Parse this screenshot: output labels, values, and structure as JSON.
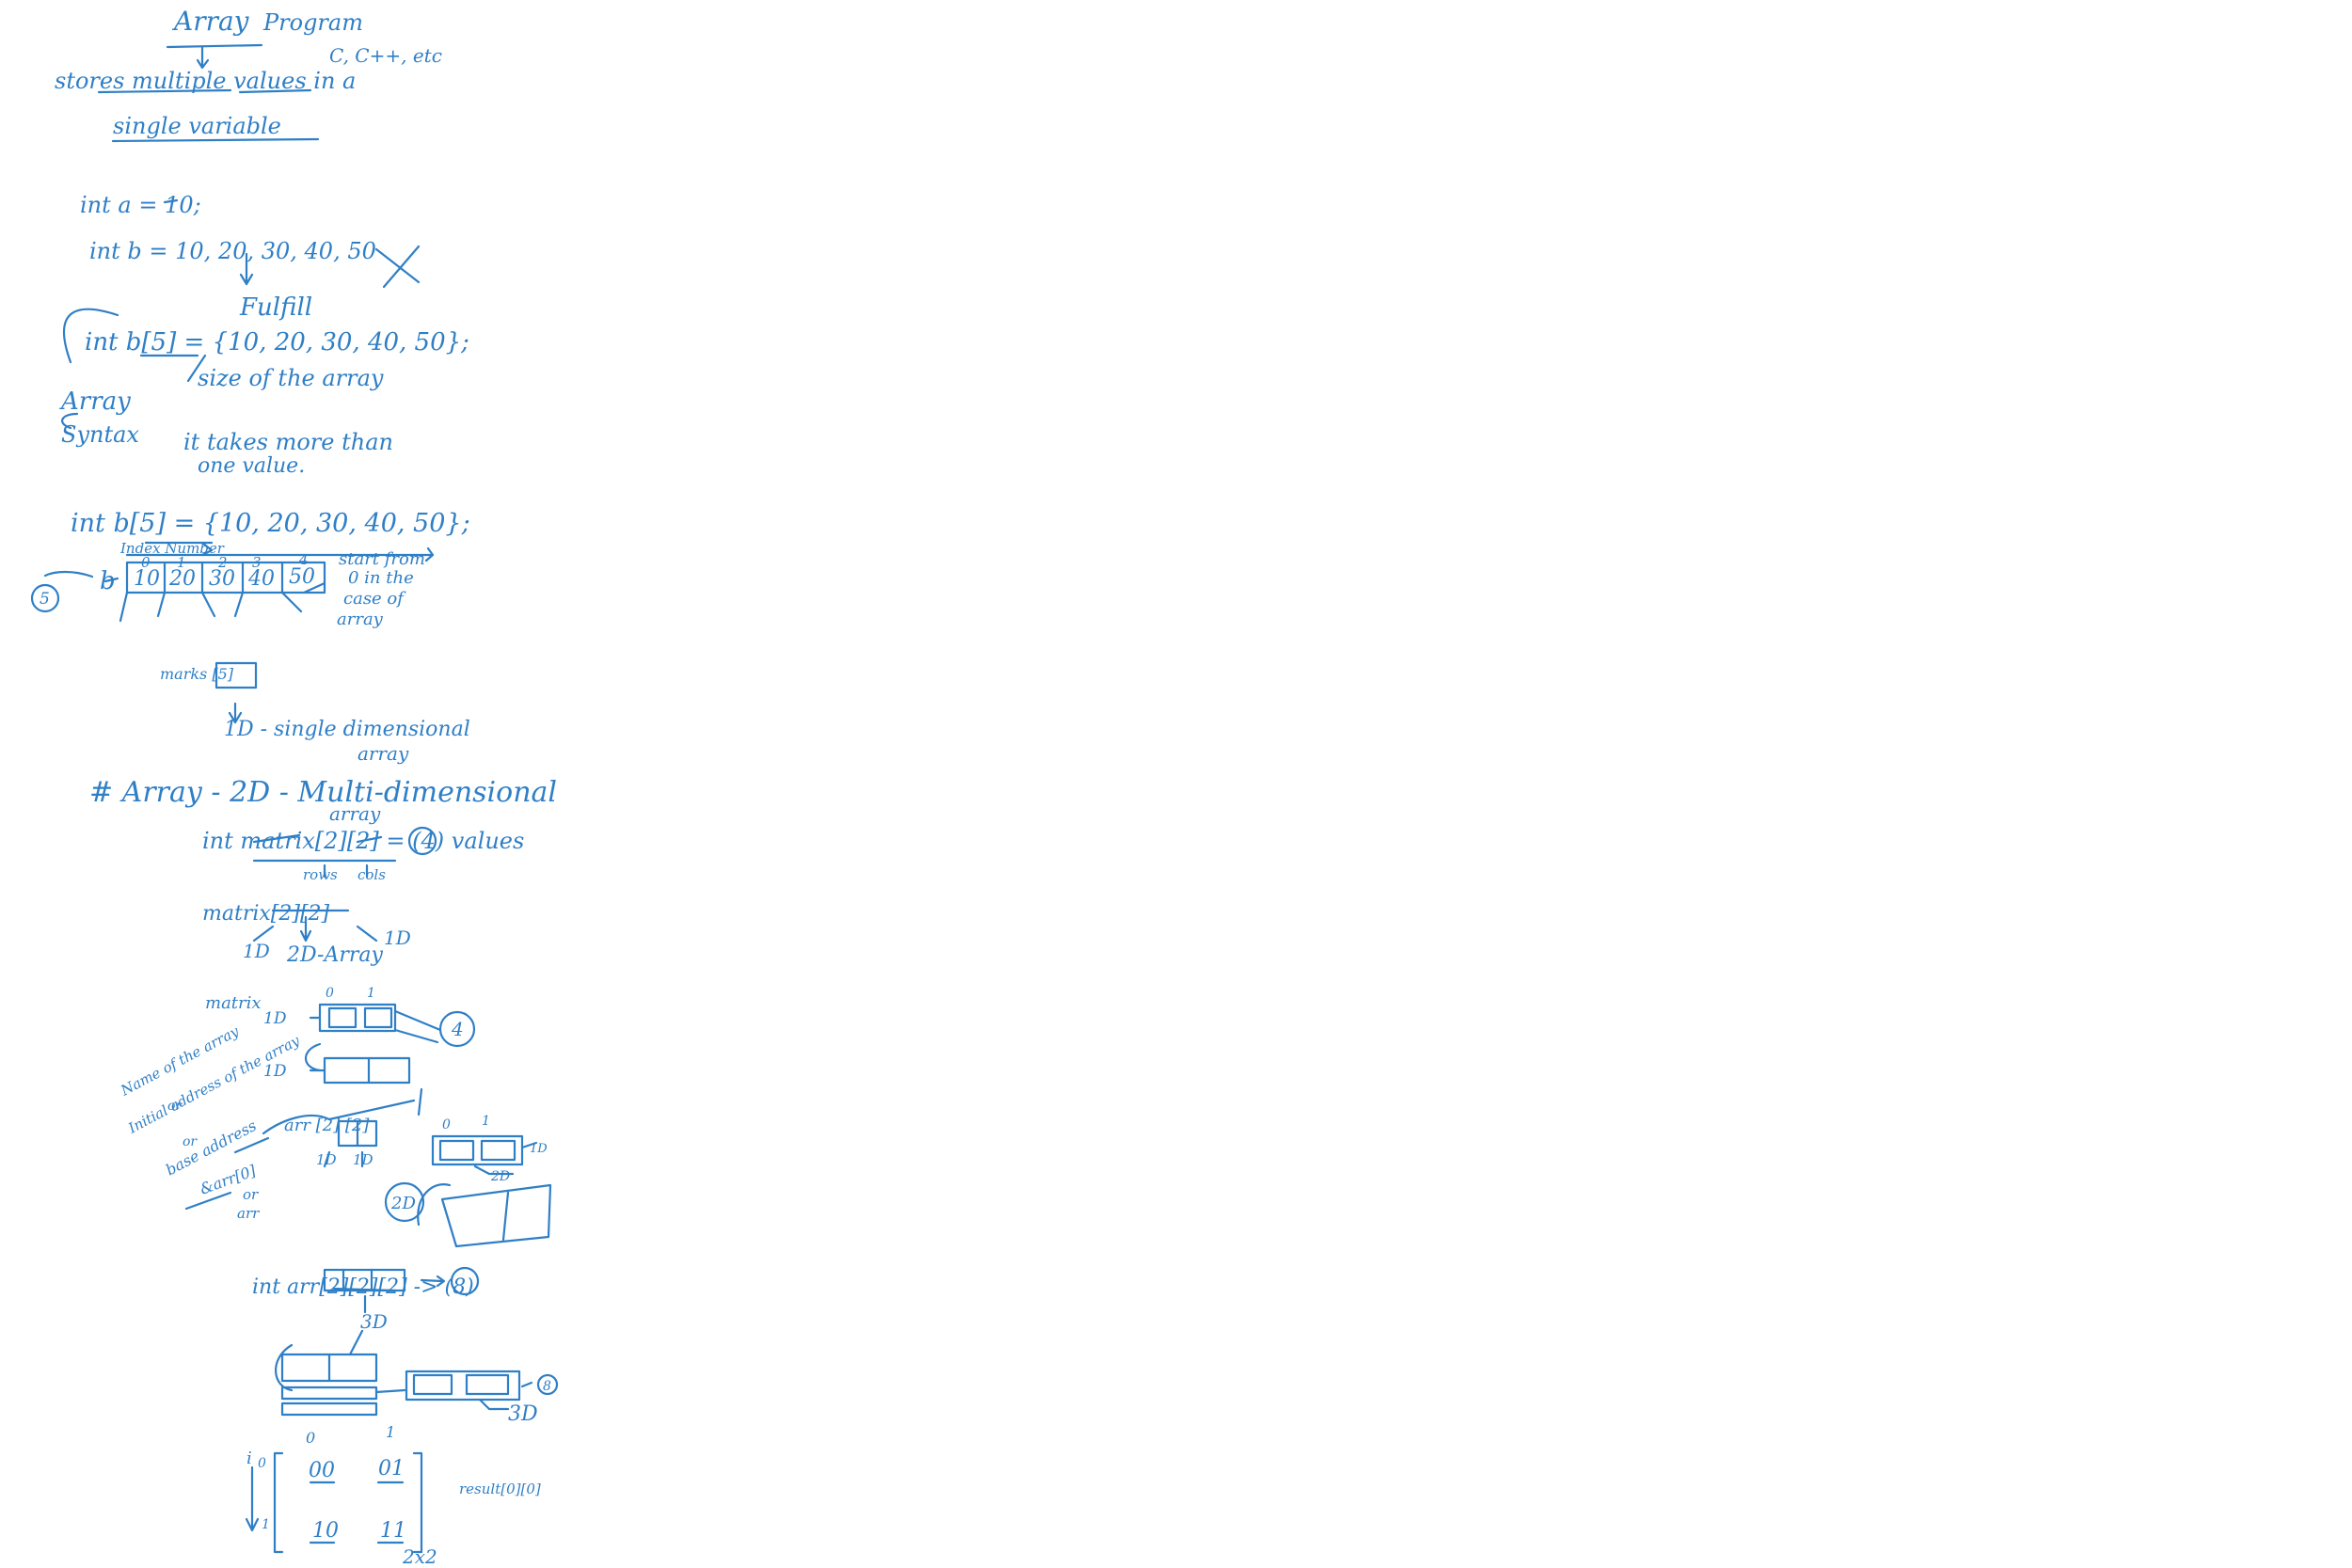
{
  "page": {
    "background": "#ffffff",
    "ink_color": "#2f7fc6"
  },
  "notes": {
    "title_array": "Array",
    "title_program": "Program",
    "langs": "C, C++, etc",
    "def_line1": "stores multiple values in a",
    "def_line2": "single variable",
    "code_int_a": "int a = 10;",
    "code_int_b_bad": "int b = 10, 20, 30, 40, 50",
    "fulfill": "Fulfill",
    "code_array_decl": "int b[5] = {10, 20, 30, 40, 50};",
    "size_note": "size of the array",
    "syntax_label_1": "Array",
    "syntax_label_2": "Syntax",
    "takes_more": "it takes more than",
    "one_value": "one value.",
    "code_array_decl2": "int b[5] = {10, 20, 30, 40, 50};",
    "index_number": "Index Number",
    "var_b": "b",
    "size_circle": "5",
    "index_labels": [
      "0",
      "1",
      "2",
      "3",
      "4"
    ],
    "cells": [
      "10",
      "20",
      "30",
      "40",
      "50"
    ],
    "start_note": [
      "start from",
      "0 in the",
      "case of",
      "array"
    ],
    "marks": "marks [5]",
    "one_d": "1D - single dimensional",
    "one_d_2": "array",
    "two_d_heading": "# Array - 2D - Multi-dimensional",
    "two_d_heading_2": "array",
    "matrix_decl": "int matrix[2][2] = (4) values",
    "rows": "rows",
    "cols": "cols",
    "matrix_label": "matrix[2][2]",
    "one_d_left": "1D",
    "one_d_right": "1D",
    "two_d_array": "2D-Array",
    "matrix_word": "matrix",
    "idx_0": "0",
    "idx_1": "1",
    "circle_4": "4",
    "name_of_array": "Name of the array",
    "or1": "or",
    "initial_address": "Initial address of the array",
    "or2": "or",
    "base_address": "base address",
    "amp_arr": "&arr[0]",
    "or3": "or",
    "arr_word": "arr",
    "arr_decl": "arr [2] [2]",
    "d1": "1D",
    "d2": "1D",
    "label_2d_circle": "2D",
    "label_2d": "2D",
    "decl_3d": "int arr[2][2][2] -> (8)",
    "three_d": "3D",
    "circle_8": "8",
    "three_d_2": "3D",
    "matrix_idx_i": "i",
    "mat_cells": [
      "00",
      "01",
      "10",
      "11"
    ],
    "result": "result[0][0]",
    "size_2x2": "2x2"
  }
}
